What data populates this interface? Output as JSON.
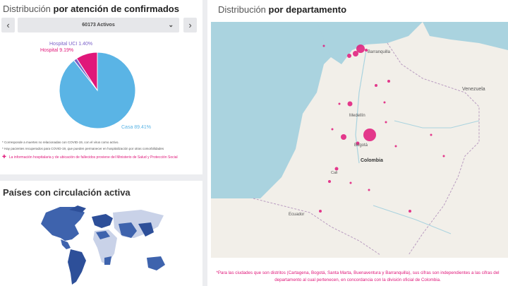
{
  "panel1": {
    "title_prefix": "Distribución",
    "title_bold": "por atención de confirmados",
    "prev_label": "‹",
    "next_label": "›",
    "select_value": "60173 Activos",
    "chart_data": {
      "type": "pie",
      "categories": [
        "Casa",
        "Hospital",
        "Hospital UCI"
      ],
      "values": [
        89.41,
        9.19,
        1.4
      ],
      "labels": [
        "Casa 89.41%",
        "Hospital 9.19%",
        "Hospital UCI 1.40%"
      ],
      "colors": [
        "#5ab4e5",
        "#e0177a",
        "#7b62c9"
      ]
    },
    "notes": [
      "* Corresponde a muertes no relacionadas con COVID-19, con el virus como activo.",
      "* Hay pacientes recuperados para COVID-19, que pueden permanecer en hospitalización por otras comorbilidades"
    ],
    "hosp_note": "La información hospitalaria y de ubicación de fallecidos proviene del Ministerio de Salud y Protección Social"
  },
  "panel2": {
    "title": "Países con circulación activa"
  },
  "panel3": {
    "title_prefix": "Distribución",
    "title_bold": "por departamento",
    "map_labels": {
      "barranquilla": "Barranquilla",
      "venezuela": "Venezuela",
      "medellin": "Medellín",
      "bogota": "Bogotá",
      "colombia": "Colombia",
      "ecuador": "Ecuador",
      "cali": "Cali"
    },
    "footer_note": "*Para las ciudades que son distritos (Cartagena, Bogotá, Santa Marta, Buenaventura y Barranquilla), sus cifras son independientes a las cifras del departamento al cual pertenecen, en concordancia con la división oficial de Colombia."
  }
}
